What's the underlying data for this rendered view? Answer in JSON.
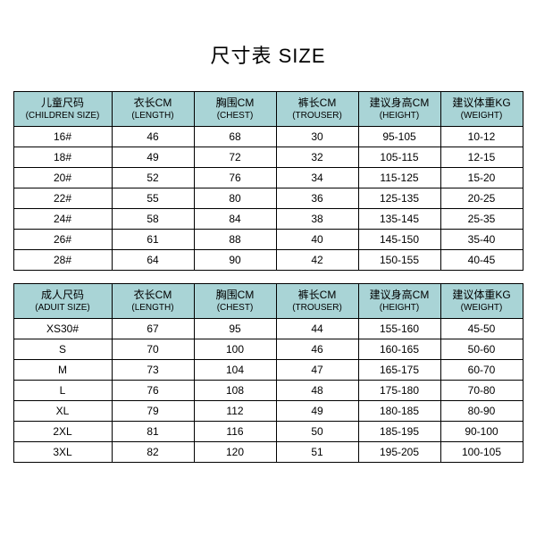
{
  "title": "尺寸表 SIZE",
  "colors": {
    "header_bg": "#a9d4d6",
    "border": "#000000",
    "background": "#ffffff",
    "text": "#000000"
  },
  "columns": [
    {
      "cn": "儿童尺码",
      "en": "(CHILDREN SIZE)"
    },
    {
      "cn": "衣长CM",
      "en": "(LENGTH)"
    },
    {
      "cn": "胸围CM",
      "en": "(CHEST)"
    },
    {
      "cn": "裤长CM",
      "en": "(TROUSER)"
    },
    {
      "cn": "建议身高CM",
      "en": "(HEIGHT)"
    },
    {
      "cn": "建议体重KG",
      "en": "(WEIGHT)"
    }
  ],
  "children_rows": [
    [
      "16#",
      "46",
      "68",
      "30",
      "95-105",
      "10-12"
    ],
    [
      "18#",
      "49",
      "72",
      "32",
      "105-115",
      "12-15"
    ],
    [
      "20#",
      "52",
      "76",
      "34",
      "115-125",
      "15-20"
    ],
    [
      "22#",
      "55",
      "80",
      "36",
      "125-135",
      "20-25"
    ],
    [
      "24#",
      "58",
      "84",
      "38",
      "135-145",
      "25-35"
    ],
    [
      "26#",
      "61",
      "88",
      "40",
      "145-150",
      "35-40"
    ],
    [
      "28#",
      "64",
      "90",
      "42",
      "150-155",
      "40-45"
    ]
  ],
  "adult_columns": [
    {
      "cn": "成人尺码",
      "en": "(ADUIT SIZE)"
    },
    {
      "cn": "衣长CM",
      "en": "(LENGTH)"
    },
    {
      "cn": "胸围CM",
      "en": "(CHEST)"
    },
    {
      "cn": "裤长CM",
      "en": "(TROUSER)"
    },
    {
      "cn": "建议身高CM",
      "en": "(HEIGHT)"
    },
    {
      "cn": "建议体重KG",
      "en": "(WEIGHT)"
    }
  ],
  "adult_rows": [
    [
      "XS30#",
      "67",
      "95",
      "44",
      "155-160",
      "45-50"
    ],
    [
      "S",
      "70",
      "100",
      "46",
      "160-165",
      "50-60"
    ],
    [
      "M",
      "73",
      "104",
      "47",
      "165-175",
      "60-70"
    ],
    [
      "L",
      "76",
      "108",
      "48",
      "175-180",
      "70-80"
    ],
    [
      "XL",
      "79",
      "112",
      "49",
      "180-185",
      "80-90"
    ],
    [
      "2XL",
      "81",
      "116",
      "50",
      "185-195",
      "90-100"
    ],
    [
      "3XL",
      "82",
      "120",
      "51",
      "195-205",
      "100-105"
    ]
  ]
}
